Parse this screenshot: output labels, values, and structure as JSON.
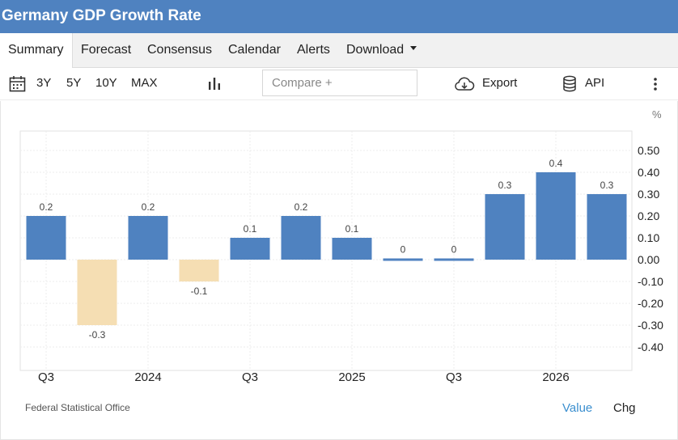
{
  "header": {
    "title": "Germany GDP Growth Rate"
  },
  "tabs": [
    {
      "label": "Summary",
      "active": true
    },
    {
      "label": "Forecast"
    },
    {
      "label": "Consensus"
    },
    {
      "label": "Calendar"
    },
    {
      "label": "Alerts"
    },
    {
      "label": "Download"
    }
  ],
  "toolbar": {
    "ranges": [
      "3Y",
      "5Y",
      "10Y",
      "MAX"
    ],
    "compare_placeholder": "Compare +",
    "export_label": "Export",
    "api_label": "API",
    "icons": [
      "calendar-icon",
      "bar-chart-icon",
      "cloud-download-icon",
      "database-icon",
      "more-vertical-icon"
    ]
  },
  "colors": {
    "header": "#4f82c0",
    "positive": "#4f82c0",
    "negative": "#f5deb3",
    "link": "#3b8fcf"
  },
  "chart_data": {
    "type": "bar",
    "unit": "%",
    "categories": [
      "",
      "",
      "",
      "",
      "",
      "",
      "",
      "",
      "",
      "",
      "",
      ""
    ],
    "values": [
      0.2,
      -0.3,
      0.2,
      -0.1,
      0.1,
      0.2,
      0.1,
      0,
      0,
      0.3,
      0.4,
      0.3
    ],
    "data_labels": [
      "0.2",
      "-0.3",
      "0.2",
      "-0.1",
      "0.1",
      "0.2",
      "0.1",
      "0",
      "0",
      "0.3",
      "0.4",
      "0.3"
    ],
    "x_tick_labels": [
      {
        "label": "Q3",
        "index": 0.5
      },
      {
        "label": "2024",
        "index": 2.5
      },
      {
        "label": "Q3",
        "index": 4.5
      },
      {
        "label": "2025",
        "index": 6.5
      },
      {
        "label": "Q3",
        "index": 8.5
      },
      {
        "label": "2026",
        "index": 10.5
      }
    ],
    "y_ticks": [
      "0.50",
      "0.40",
      "0.30",
      "0.20",
      "0.10",
      "0.00",
      "-0.10",
      "-0.20",
      "-0.30",
      "-0.40"
    ],
    "ylim": [
      -0.5,
      0.6
    ],
    "grid": true,
    "source": "Federal Statistical Office"
  },
  "footer": {
    "value_label": "Value",
    "chg_label": "Chg"
  }
}
